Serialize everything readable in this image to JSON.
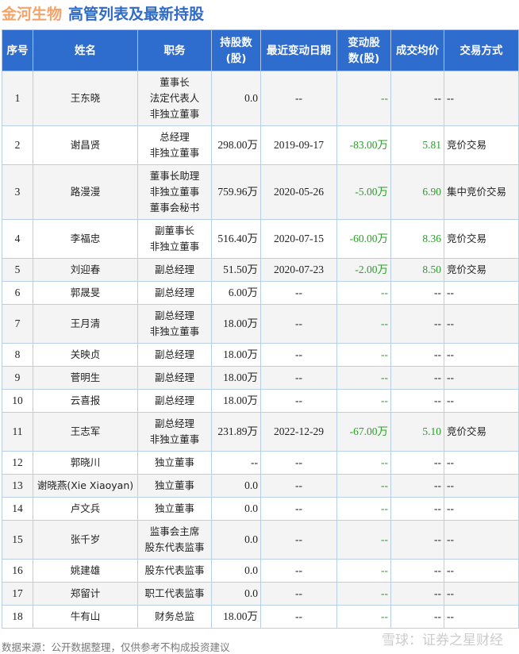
{
  "header": {
    "company": "金河生物",
    "title": "高管列表及最新持股"
  },
  "columns": [
    "序号",
    "姓名",
    "职务",
    "持股数(股)",
    "最近变动日期",
    "变动股数(股)",
    "成交均价",
    "交易方式"
  ],
  "rows": [
    {
      "no": "1",
      "name": "王东晓",
      "roles": [
        "董事长",
        "法定代表人",
        "非独立董事"
      ],
      "shares": "0.0",
      "date": "--",
      "change": "--",
      "price": "--",
      "method": "--"
    },
    {
      "no": "2",
      "name": "谢昌贤",
      "roles": [
        "总经理",
        "非独立董事"
      ],
      "shares": "298.00万",
      "date": "2019-09-17",
      "change": "-83.00万",
      "price": "5.81",
      "method": "竞价交易"
    },
    {
      "no": "3",
      "name": "路漫漫",
      "roles": [
        "董事长助理",
        "非独立董事",
        "董事会秘书"
      ],
      "shares": "759.96万",
      "date": "2020-05-26",
      "change": "-5.00万",
      "price": "6.90",
      "method": "集中竞价交易"
    },
    {
      "no": "4",
      "name": "李福忠",
      "roles": [
        "副董事长",
        "非独立董事"
      ],
      "shares": "516.40万",
      "date": "2020-07-15",
      "change": "-60.00万",
      "price": "8.36",
      "method": "竞价交易"
    },
    {
      "no": "5",
      "name": "刘迎春",
      "roles": [
        "副总经理"
      ],
      "shares": "51.50万",
      "date": "2020-07-23",
      "change": "-2.00万",
      "price": "8.50",
      "method": "竞价交易"
    },
    {
      "no": "6",
      "name": "郭晟旻",
      "roles": [
        "副总经理"
      ],
      "shares": "6.00万",
      "date": "--",
      "change": "--",
      "price": "--",
      "method": "--"
    },
    {
      "no": "7",
      "name": "王月清",
      "roles": [
        "副总经理",
        "非独立董事"
      ],
      "shares": "18.00万",
      "date": "--",
      "change": "--",
      "price": "--",
      "method": "--"
    },
    {
      "no": "8",
      "name": "关映贞",
      "roles": [
        "副总经理"
      ],
      "shares": "18.00万",
      "date": "--",
      "change": "--",
      "price": "--",
      "method": "--"
    },
    {
      "no": "9",
      "name": "菅明生",
      "roles": [
        "副总经理"
      ],
      "shares": "18.00万",
      "date": "--",
      "change": "--",
      "price": "--",
      "method": "--"
    },
    {
      "no": "10",
      "name": "云喜报",
      "roles": [
        "副总经理"
      ],
      "shares": "18.00万",
      "date": "--",
      "change": "--",
      "price": "--",
      "method": "--"
    },
    {
      "no": "11",
      "name": "王志军",
      "roles": [
        "副总经理",
        "非独立董事"
      ],
      "shares": "231.89万",
      "date": "2022-12-29",
      "change": "-67.00万",
      "price": "5.10",
      "method": "竞价交易"
    },
    {
      "no": "12",
      "name": "郭晓川",
      "roles": [
        "独立董事"
      ],
      "shares": "--",
      "date": "--",
      "change": "--",
      "price": "--",
      "method": "--"
    },
    {
      "no": "13",
      "name": "谢晓燕(Xie Xiaoyan)",
      "roles": [
        "独立董事"
      ],
      "shares": "0.0",
      "date": "--",
      "change": "--",
      "price": "--",
      "method": "--"
    },
    {
      "no": "14",
      "name": "卢文兵",
      "roles": [
        "独立董事"
      ],
      "shares": "0.0",
      "date": "--",
      "change": "--",
      "price": "--",
      "method": "--"
    },
    {
      "no": "15",
      "name": "张千岁",
      "roles": [
        "监事会主席",
        "股东代表监事"
      ],
      "shares": "0.0",
      "date": "--",
      "change": "--",
      "price": "--",
      "method": "--"
    },
    {
      "no": "16",
      "name": "姚建雄",
      "roles": [
        "股东代表监事"
      ],
      "shares": "0.0",
      "date": "--",
      "change": "--",
      "price": "--",
      "method": "--"
    },
    {
      "no": "17",
      "name": "郑留计",
      "roles": [
        "职工代表监事"
      ],
      "shares": "0.0",
      "date": "--",
      "change": "--",
      "price": "--",
      "method": "--"
    },
    {
      "no": "18",
      "name": "牛有山",
      "roles": [
        "财务总监"
      ],
      "shares": "18.00万",
      "date": "--",
      "change": "--",
      "price": "--",
      "method": "--"
    }
  ],
  "footer": {
    "source": "数据来源：公开数据整理，仅供参考不构成投资建议",
    "brand": "雪球：证券之星财经"
  },
  "colors": {
    "header_bg": "#2e6ccd",
    "company": "#f4a46a",
    "title": "#2f6bc4",
    "negative": "#2a9d2a"
  }
}
